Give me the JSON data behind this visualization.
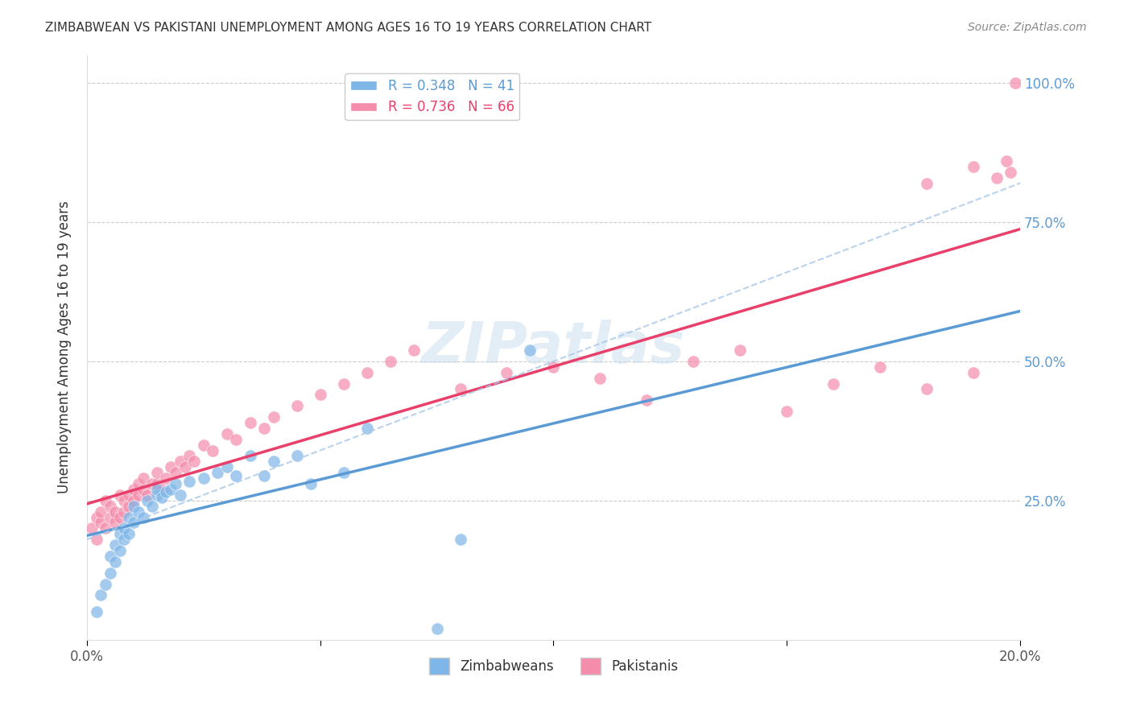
{
  "title": "ZIMBABWEAN VS PAKISTANI UNEMPLOYMENT AMONG AGES 16 TO 19 YEARS CORRELATION CHART",
  "source": "Source: ZipAtlas.com",
  "xlabel": "",
  "ylabel": "Unemployment Among Ages 16 to 19 years",
  "xlim": [
    0.0,
    0.2
  ],
  "ylim": [
    0.0,
    1.05
  ],
  "x_ticks": [
    0.0,
    0.05,
    0.1,
    0.15,
    0.2
  ],
  "x_tick_labels": [
    "0.0%",
    "",
    "",
    "",
    "20.0%"
  ],
  "y_ticks": [
    0.0,
    0.25,
    0.5,
    0.75,
    1.0
  ],
  "y_tick_labels": [
    "",
    "25.0%",
    "50.0%",
    "75.0%",
    "100.0%"
  ],
  "legend_entries": [
    {
      "label": "R = 0.348   N = 41",
      "color": "#7EB6E8"
    },
    {
      "label": "R = 0.736   N = 66",
      "color": "#F48CAB"
    }
  ],
  "zimbabwean_color": "#7EB6E8",
  "pakistani_color": "#F48CAB",
  "zim_R": 0.348,
  "pak_R": 0.736,
  "watermark": "ZIPatlas",
  "zim_scatter_x": [
    0.002,
    0.003,
    0.004,
    0.005,
    0.005,
    0.006,
    0.006,
    0.007,
    0.007,
    0.008,
    0.008,
    0.009,
    0.009,
    0.01,
    0.01,
    0.011,
    0.012,
    0.013,
    0.014,
    0.015,
    0.015,
    0.016,
    0.017,
    0.018,
    0.019,
    0.02,
    0.022,
    0.025,
    0.028,
    0.03,
    0.032,
    0.035,
    0.038,
    0.04,
    0.045,
    0.048,
    0.055,
    0.06,
    0.075,
    0.08,
    0.095
  ],
  "zim_scatter_y": [
    0.05,
    0.08,
    0.1,
    0.12,
    0.15,
    0.14,
    0.17,
    0.16,
    0.19,
    0.18,
    0.2,
    0.19,
    0.22,
    0.21,
    0.24,
    0.23,
    0.22,
    0.25,
    0.24,
    0.26,
    0.27,
    0.255,
    0.265,
    0.27,
    0.28,
    0.26,
    0.285,
    0.29,
    0.3,
    0.31,
    0.295,
    0.33,
    0.295,
    0.32,
    0.33,
    0.28,
    0.3,
    0.38,
    0.02,
    0.18,
    0.52
  ],
  "pak_scatter_x": [
    0.001,
    0.002,
    0.002,
    0.003,
    0.003,
    0.004,
    0.004,
    0.005,
    0.005,
    0.006,
    0.006,
    0.007,
    0.007,
    0.008,
    0.008,
    0.009,
    0.009,
    0.01,
    0.01,
    0.011,
    0.011,
    0.012,
    0.012,
    0.013,
    0.014,
    0.015,
    0.015,
    0.016,
    0.017,
    0.018,
    0.019,
    0.02,
    0.021,
    0.022,
    0.023,
    0.025,
    0.027,
    0.03,
    0.032,
    0.035,
    0.038,
    0.04,
    0.045,
    0.05,
    0.055,
    0.06,
    0.065,
    0.07,
    0.08,
    0.09,
    0.1,
    0.11,
    0.12,
    0.13,
    0.14,
    0.15,
    0.16,
    0.17,
    0.18,
    0.19,
    0.195,
    0.197,
    0.198,
    0.199,
    0.18,
    0.19
  ],
  "pak_scatter_y": [
    0.2,
    0.18,
    0.22,
    0.21,
    0.23,
    0.2,
    0.25,
    0.22,
    0.24,
    0.21,
    0.23,
    0.22,
    0.26,
    0.23,
    0.25,
    0.24,
    0.26,
    0.25,
    0.27,
    0.26,
    0.28,
    0.27,
    0.29,
    0.26,
    0.28,
    0.28,
    0.3,
    0.27,
    0.29,
    0.31,
    0.3,
    0.32,
    0.31,
    0.33,
    0.32,
    0.35,
    0.34,
    0.37,
    0.36,
    0.39,
    0.38,
    0.4,
    0.42,
    0.44,
    0.46,
    0.48,
    0.5,
    0.52,
    0.45,
    0.48,
    0.49,
    0.47,
    0.43,
    0.5,
    0.52,
    0.41,
    0.46,
    0.49,
    0.45,
    0.48,
    0.83,
    0.86,
    0.84,
    1.0,
    0.82,
    0.85
  ]
}
